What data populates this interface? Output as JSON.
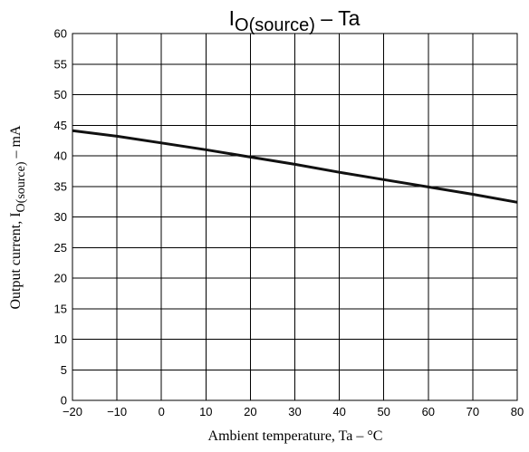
{
  "chart_data": {
    "type": "line",
    "title": {
      "main": "I",
      "sub": "O(source)",
      "tail": " – Ta"
    },
    "xlabel": "Ambient temperature,  Ta  –  °C",
    "ylabel": {
      "pre": "Output current,  I",
      "sub": "O(source)",
      "post": "  –  mA"
    },
    "xlim": [
      -20,
      80
    ],
    "ylim": [
      0,
      60
    ],
    "x_ticks": [
      -20,
      -10,
      0,
      10,
      20,
      30,
      40,
      50,
      60,
      70,
      80
    ],
    "x_tick_labels": [
      "−20",
      "−10",
      "0",
      "10",
      "20",
      "30",
      "40",
      "50",
      "60",
      "70",
      "80"
    ],
    "y_ticks": [
      0,
      5,
      10,
      15,
      20,
      25,
      30,
      35,
      40,
      45,
      50,
      55,
      60
    ],
    "y_tick_labels": [
      "0",
      "5",
      "10",
      "15",
      "20",
      "25",
      "30",
      "35",
      "40",
      "45",
      "50",
      "55",
      "60"
    ],
    "grid": true,
    "series": [
      {
        "x": [
          -20,
          -10,
          0,
          10,
          20,
          30,
          40,
          50,
          60,
          70,
          80
        ],
        "y": [
          44.1,
          43.2,
          42.1,
          41.0,
          39.8,
          38.6,
          37.3,
          36.1,
          34.9,
          33.7,
          32.4
        ]
      }
    ]
  }
}
